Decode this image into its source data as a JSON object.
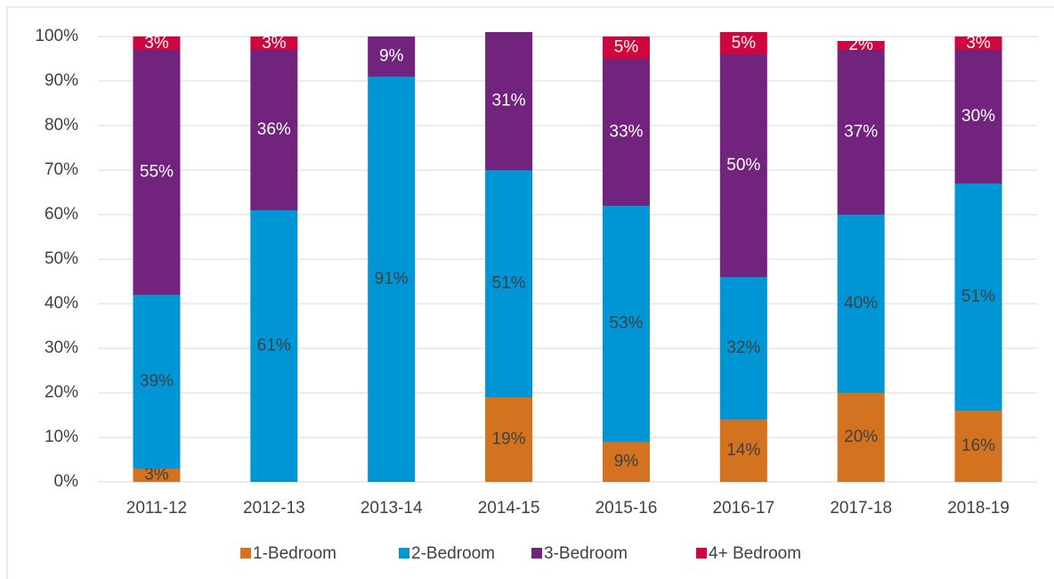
{
  "chart_data": {
    "type": "stacked_bar",
    "categories": [
      "2011-12",
      "2012-13",
      "2013-14",
      "2014-15",
      "2015-16",
      "2016-17",
      "2017-18",
      "2018-19"
    ],
    "series": [
      {
        "name": "1-Bedroom",
        "color": "#d4731f",
        "label_color": "#404040",
        "values": [
          3,
          0,
          0,
          19,
          9,
          14,
          20,
          16
        ],
        "value_labels": [
          "3%",
          null,
          null,
          "19%",
          "9%",
          "14%",
          "20%",
          "16%"
        ]
      },
      {
        "name": "2-Bedroom",
        "color": "#0096d6",
        "label_color": "#404040",
        "values": [
          39,
          61,
          91,
          51,
          53,
          32,
          40,
          51
        ],
        "value_labels": [
          "39%",
          "61%",
          "91%",
          "51%",
          "53%",
          "32%",
          "40%",
          "51%"
        ]
      },
      {
        "name": "3-Bedroom",
        "color": "#71237d",
        "label_color": "#ffffff",
        "values": [
          55,
          36,
          9,
          31,
          33,
          50,
          37,
          30
        ],
        "value_labels": [
          "55%",
          "36%",
          "9%",
          "31%",
          "33%",
          "50%",
          "37%",
          "30%"
        ]
      },
      {
        "name": "4+ Bedroom",
        "color": "#d0063f",
        "label_color": "#ffffff",
        "values": [
          3,
          3,
          0,
          0,
          5,
          5,
          2,
          3
        ],
        "value_labels": [
          "3%",
          "3%",
          null,
          null,
          "5%",
          "5%",
          "2%",
          "3%"
        ]
      }
    ],
    "ylim": [
      0,
      100
    ],
    "yticks": [
      {
        "value": 0,
        "label": "0%"
      },
      {
        "value": 10,
        "label": "10%"
      },
      {
        "value": 20,
        "label": "20%"
      },
      {
        "value": 30,
        "label": "30%"
      },
      {
        "value": 40,
        "label": "40%"
      },
      {
        "value": 50,
        "label": "50%"
      },
      {
        "value": 60,
        "label": "60%"
      },
      {
        "value": 70,
        "label": "70%"
      },
      {
        "value": 80,
        "label": "80%"
      },
      {
        "value": 90,
        "label": "90%"
      },
      {
        "value": 100,
        "label": "100%"
      }
    ],
    "grid": true,
    "legend": "bottom"
  }
}
